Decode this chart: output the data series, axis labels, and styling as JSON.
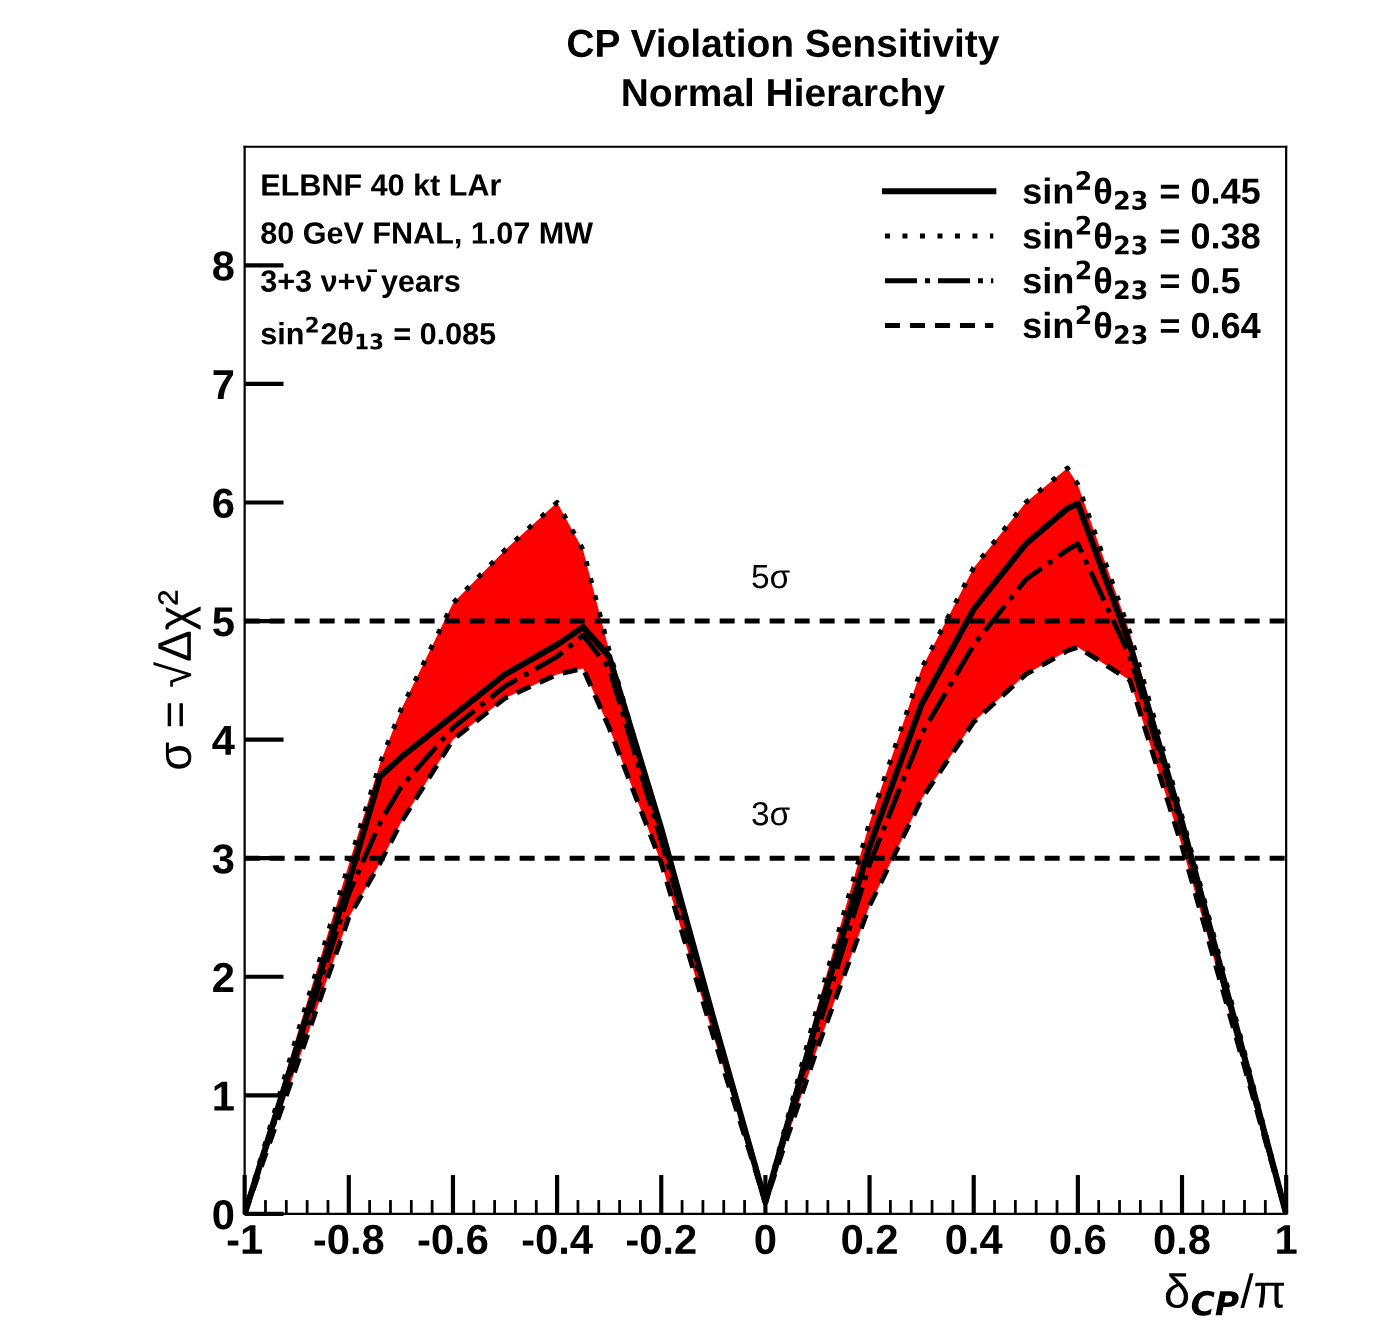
{
  "chart_data": {
    "type": "line",
    "title": "CP Violation Sensitivity",
    "subtitle": "Normal Hierarchy",
    "xlabel": "δ$_{CP}$/π",
    "ylabel": "σ = √Δχ²",
    "x": [
      -1,
      -0.9,
      -0.8,
      -0.74,
      -0.7,
      -0.6,
      -0.5,
      -0.4,
      -0.35,
      -0.3,
      -0.2,
      -0.1,
      0,
      0.1,
      0.2,
      0.3,
      0.4,
      0.5,
      0.58,
      0.6,
      0.7,
      0.8,
      0.9,
      1
    ],
    "series": [
      {
        "name": "sin$^{2}$θ$_{23}$ = 0.45",
        "color": "#000000",
        "line_style": "solid",
        "values": [
          0,
          1.4,
          2.8,
          3.69,
          3.85,
          4.2,
          4.55,
          4.8,
          4.95,
          4.7,
          3.25,
          1.65,
          0.1,
          1.65,
          3.1,
          4.3,
          5.1,
          5.65,
          5.95,
          5.99,
          4.8,
          3.3,
          1.65,
          0
        ],
        "lower": [
          0,
          1.25,
          2.5,
          2.96,
          3.3,
          4.0,
          4.35,
          4.55,
          4.6,
          4.1,
          2.96,
          1.5,
          0.1,
          1.4,
          2.6,
          3.5,
          4.15,
          4.55,
          4.75,
          4.78,
          4.5,
          3.1,
          1.55,
          0
        ],
        "upper": [
          0,
          1.5,
          2.95,
          3.8,
          4.25,
          5.15,
          5.6,
          6.0,
          5.6,
          4.75,
          3.2,
          1.65,
          0.1,
          1.75,
          3.3,
          4.6,
          5.45,
          6.0,
          6.29,
          6.15,
          4.9,
          3.35,
          1.7,
          0
        ]
      },
      {
        "name": "sin$^{2}$θ$_{23}$ = 0.38",
        "color": "#000000",
        "line_style": "dotted",
        "values": [
          0,
          1.5,
          2.95,
          3.8,
          4.25,
          5.15,
          5.6,
          6.0,
          5.6,
          4.75,
          3.2,
          1.65,
          0.1,
          1.75,
          3.3,
          4.6,
          5.45,
          6.0,
          6.29,
          6.15,
          4.9,
          3.35,
          1.7,
          0
        ]
      },
      {
        "name": "sin$^{2}$θ$_{23}$ = 0.5",
        "color": "#000000",
        "line_style": "dashdot",
        "values": [
          0,
          1.35,
          2.7,
          3.3,
          3.6,
          4.1,
          4.45,
          4.7,
          4.88,
          4.6,
          3.15,
          1.6,
          0.1,
          1.55,
          2.95,
          4.05,
          4.8,
          5.35,
          5.6,
          5.65,
          4.7,
          3.25,
          1.6,
          0
        ]
      },
      {
        "name": "sin$^{2}$θ$_{23}$ = 0.64",
        "color": "#000000",
        "line_style": "dashed",
        "values": [
          0,
          1.25,
          2.5,
          2.96,
          3.3,
          4.0,
          4.35,
          4.55,
          4.6,
          4.1,
          2.96,
          1.5,
          0.1,
          1.4,
          2.6,
          3.5,
          4.15,
          4.55,
          4.75,
          4.78,
          4.5,
          3.1,
          1.55,
          0
        ]
      }
    ],
    "xlim": [
      -1,
      1
    ],
    "xticks": [
      -1,
      -0.8,
      -0.6,
      -0.4,
      -0.2,
      0,
      0.2,
      0.4,
      0.6,
      0.8,
      1
    ],
    "ylim": [
      0,
      9
    ],
    "yticks": [
      0,
      1,
      2,
      3,
      4,
      5,
      6,
      7,
      8
    ],
    "ref_lines": [
      {
        "axis": "y",
        "value": 3,
        "label": "3σ",
        "line_style": "dashed"
      },
      {
        "axis": "y",
        "value": 5,
        "label": "5σ",
        "line_style": "dashed"
      }
    ],
    "annotations": [
      "ELBNF 40 kt LAr",
      "80 GeV FNAL, 1.07 MW",
      "3+3 ν+ν̄ years",
      "sin$^{2}$2θ$_{13}$ = 0.085"
    ],
    "legend": "top right",
    "grid": false,
    "marker": "none"
  }
}
